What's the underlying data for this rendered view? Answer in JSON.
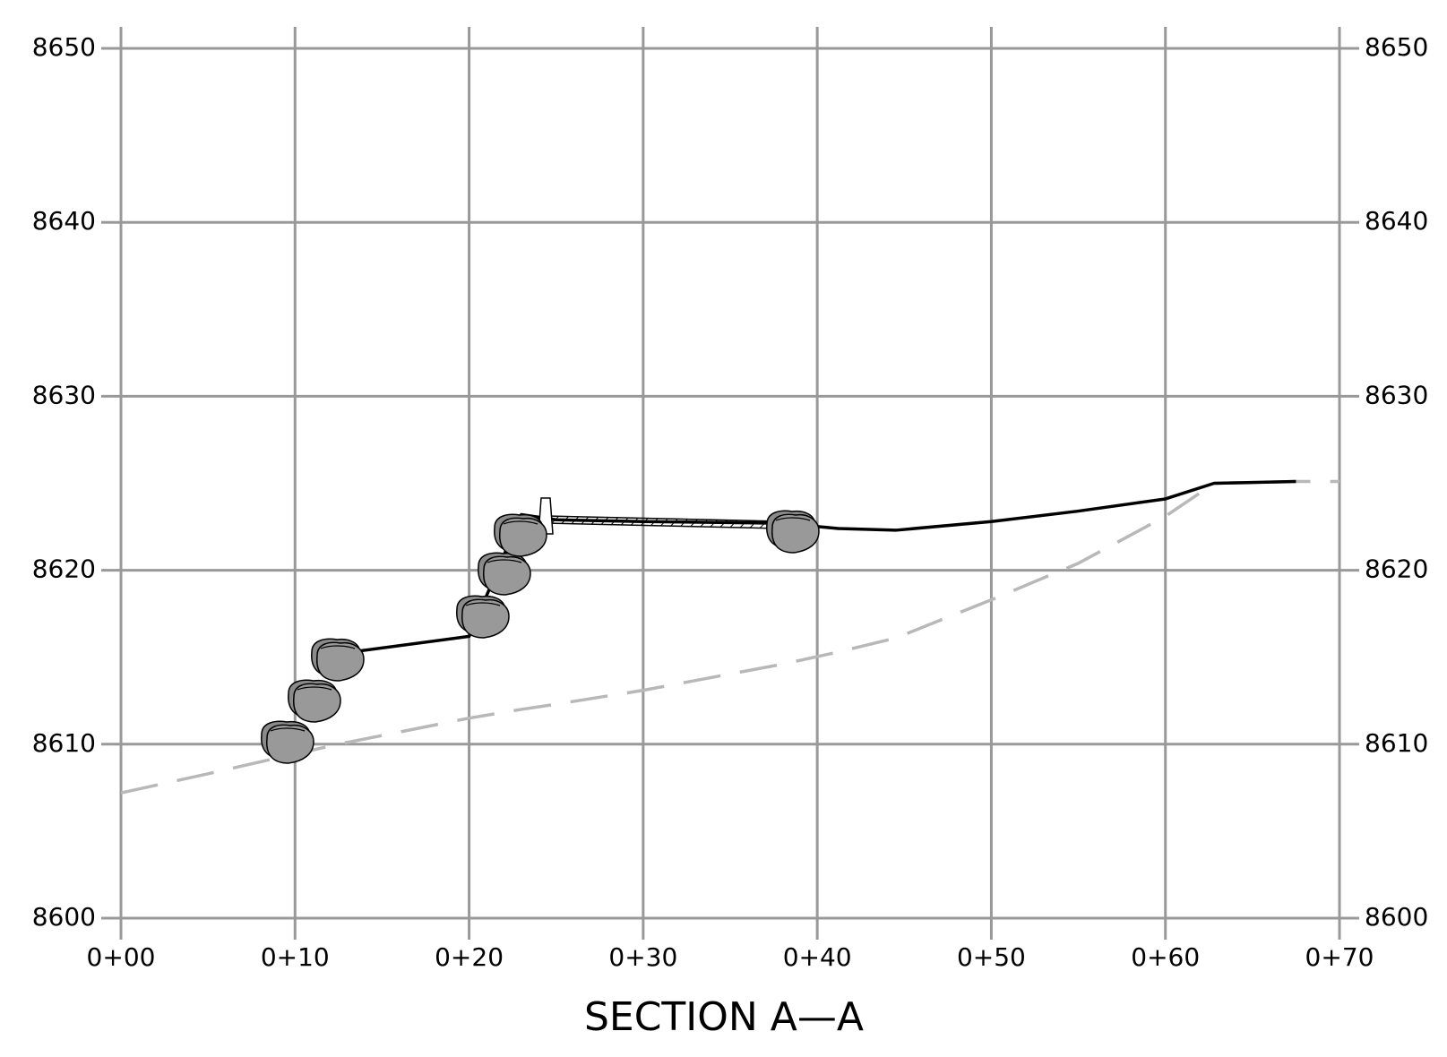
{
  "chart_data": {
    "type": "line",
    "title": "SECTION A—A",
    "x": [
      0,
      5,
      8.5,
      12.5,
      20,
      23,
      25,
      30,
      38,
      41.2,
      44.5,
      50,
      55,
      60,
      62.8,
      67.5,
      70
    ],
    "series": [
      {
        "color": "#b8b8b8",
        "dashed": true,
        "values": [
          8607.2,
          8608.3,
          8609.1,
          8610.0,
          8611.5,
          8612.0,
          8612.3,
          8613.1,
          8614.6,
          8615.3,
          8616.1,
          8618.3,
          8620.4,
          8623.1,
          8625.0,
          8625.1,
          8625.1
        ]
      },
      {
        "color": "#000000",
        "dashed": false,
        "values": [
          null,
          null,
          null,
          8615.2,
          8616.2,
          8623.2,
          8622.9,
          8622.8,
          8622.7,
          8622.4,
          8622.3,
          8622.8,
          8623.4,
          8624.1,
          8625.0,
          8625.1,
          null
        ]
      }
    ],
    "xlim": [
      0,
      70
    ],
    "xticks": [
      {
        "value": 0,
        "label": "0+00"
      },
      {
        "value": 10,
        "label": "0+10"
      },
      {
        "value": 20,
        "label": "0+20"
      },
      {
        "value": 30,
        "label": "0+30"
      },
      {
        "value": 40,
        "label": "0+40"
      },
      {
        "value": 50,
        "label": "0+50"
      },
      {
        "value": 60,
        "label": "0+60"
      },
      {
        "value": 70,
        "label": "0+70"
      }
    ],
    "ylim": [
      8600,
      8650
    ],
    "yticks": [
      8600,
      8610,
      8620,
      8630,
      8640,
      8650
    ],
    "grid": true
  }
}
